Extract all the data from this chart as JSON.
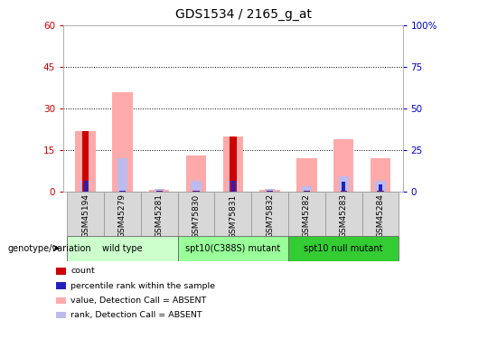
{
  "title": "GDS1534 / 2165_g_at",
  "samples": [
    "GSM45194",
    "GSM45279",
    "GSM45281",
    "GSM75830",
    "GSM75831",
    "GSM75832",
    "GSM45282",
    "GSM45283",
    "GSM45284"
  ],
  "count_values": [
    22,
    0.4,
    0.2,
    0.3,
    20,
    0.2,
    0.3,
    0.4,
    0.3
  ],
  "rank_values": [
    4,
    0.3,
    0.3,
    0.3,
    4,
    0.3,
    0.4,
    3.5,
    2.5
  ],
  "absent_value": [
    22,
    36,
    0.5,
    13,
    20,
    0.5,
    12,
    19,
    12
  ],
  "absent_rank": [
    4,
    12,
    1.0,
    4,
    4,
    0.8,
    2.0,
    5.5,
    4.0
  ],
  "groups": [
    {
      "label": "wild type",
      "indices": [
        0,
        1,
        2
      ],
      "color": "#ccffcc"
    },
    {
      "label": "spt10(C388S) mutant",
      "indices": [
        3,
        4,
        5
      ],
      "color": "#99ff99"
    },
    {
      "label": "spt10 null mutant",
      "indices": [
        6,
        7,
        8
      ],
      "color": "#33cc33"
    }
  ],
  "ylim_left": [
    0,
    60
  ],
  "ylim_right": [
    0,
    100
  ],
  "yticks_left": [
    0,
    15,
    30,
    45,
    60
  ],
  "yticks_right": [
    0,
    25,
    50,
    75,
    100
  ],
  "count_color": "#cc0000",
  "rank_color": "#2222bb",
  "absent_value_color": "#ffaaaa",
  "absent_rank_color": "#bbbbee",
  "left_tick_color": "#cc0000",
  "right_tick_color": "#0000cc",
  "legend_items": [
    {
      "label": "count",
      "color": "#cc0000"
    },
    {
      "label": "percentile rank within the sample",
      "color": "#2222bb"
    },
    {
      "label": "value, Detection Call = ABSENT",
      "color": "#ffaaaa"
    },
    {
      "label": "rank, Detection Call = ABSENT",
      "color": "#bbbbee"
    }
  ],
  "genotype_label": "genotype/variation"
}
